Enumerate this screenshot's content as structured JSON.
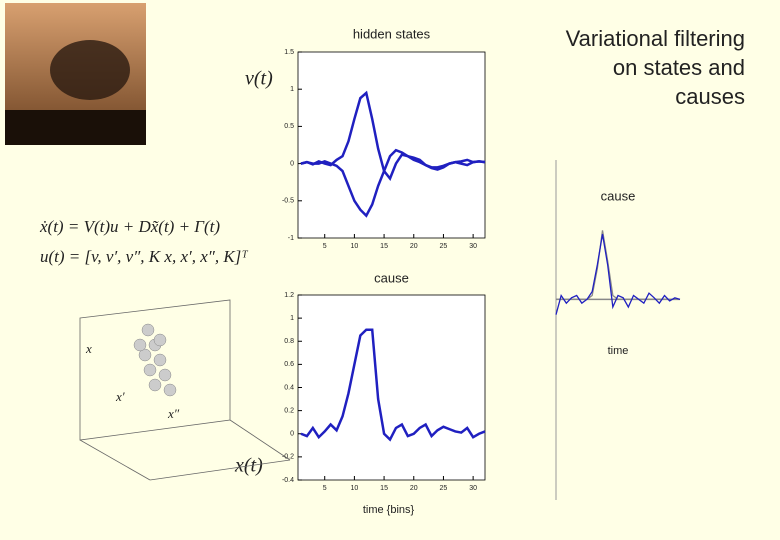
{
  "slide": {
    "title_lines": [
      "Variational filtering",
      "on states and",
      "causes"
    ],
    "labels": [
      "v(t)",
      "x(t)",
      "x",
      "x′",
      "x″"
    ],
    "equations": [
      "ẋ(t) = V(t)u + Dx̃(t) + Γ(t)",
      "u(t) = [v, v′, v″, K x, x′, x″, K]ᵀ"
    ]
  },
  "chart_data": [
    {
      "type": "line",
      "title": "hidden states",
      "x": [
        1,
        2,
        3,
        4,
        5,
        6,
        7,
        8,
        9,
        10,
        11,
        12,
        13,
        14,
        15,
        16,
        17,
        18,
        19,
        20,
        21,
        22,
        23,
        24,
        25,
        26,
        27,
        28,
        29,
        30,
        31,
        32
      ],
      "series": [
        {
          "color": "#2020c0",
          "values": [
            0,
            0.02,
            -0.01,
            0.03,
            0,
            -0.02,
            0.05,
            0.1,
            0.3,
            0.6,
            0.88,
            0.95,
            0.6,
            0.2,
            -0.1,
            -0.2,
            0,
            0.12,
            0.1,
            0.05,
            0.02,
            -0.02,
            -0.05,
            -0.05,
            -0.03,
            0,
            0.02,
            0,
            -0.02,
            0.02,
            0.03,
            0.02
          ]
        },
        {
          "color": "#2020c0",
          "values": [
            0,
            0.02,
            0,
            0,
            0.03,
            0,
            -0.03,
            -0.1,
            -0.3,
            -0.5,
            -0.62,
            -0.7,
            -0.55,
            -0.3,
            -0.1,
            0.1,
            0.18,
            0.15,
            0.1,
            0.08,
            0.05,
            -0.02,
            -0.06,
            -0.08,
            -0.05,
            0,
            0.02,
            0.03,
            0.05,
            0.02,
            0.03,
            0.02
          ]
        }
      ],
      "xlim": [
        0.5,
        32
      ],
      "xticks": [
        5,
        10,
        15,
        20,
        25,
        30
      ],
      "ylim": [
        -1,
        1.5
      ],
      "yticks": [
        -1,
        -0.5,
        0,
        0.5,
        1,
        1.5
      ]
    },
    {
      "type": "line",
      "title": "cause",
      "x_label": "time {bins}",
      "x": [
        1,
        2,
        3,
        4,
        5,
        6,
        7,
        8,
        9,
        10,
        11,
        12,
        13,
        14,
        15,
        16,
        17,
        18,
        19,
        20,
        21,
        22,
        23,
        24,
        25,
        26,
        27,
        28,
        29,
        30,
        31,
        32
      ],
      "series": [
        {
          "color": "#2020c0",
          "values": [
            0,
            -0.02,
            0.05,
            -0.03,
            0.02,
            0.08,
            0.03,
            0.15,
            0.35,
            0.6,
            0.85,
            0.9,
            0.9,
            0.3,
            0,
            -0.05,
            0.05,
            0.08,
            -0.02,
            0,
            0.05,
            0.08,
            -0.02,
            0.03,
            0.06,
            0.04,
            0.02,
            0.01,
            0.05,
            -0.03,
            0,
            0.02
          ]
        }
      ],
      "xlim": [
        0.5,
        32
      ],
      "xticks": [
        5,
        10,
        15,
        20,
        25,
        30
      ],
      "ylim": [
        -0.4,
        1.2
      ],
      "yticks": [
        -0.4,
        -0.2,
        0,
        0.2,
        0.4,
        0.6,
        0.8,
        1,
        1.2
      ]
    },
    {
      "type": "line",
      "title": "cause",
      "x_label": "time",
      "x": [
        1,
        2,
        3,
        4,
        5,
        6,
        7,
        8,
        9,
        10,
        11,
        12,
        13,
        14,
        15,
        16,
        17,
        18,
        19,
        20,
        21,
        22,
        23,
        24,
        25
      ],
      "series": [
        {
          "color": "#888888",
          "values": [
            0,
            0,
            0,
            0,
            0,
            0,
            0,
            0.05,
            0.4,
            0.9,
            0.5,
            0.05,
            0,
            0,
            0,
            0,
            0,
            0,
            0,
            0,
            0,
            0,
            0,
            0,
            0
          ]
        },
        {
          "color": "#2020c0",
          "values": [
            -0.2,
            0.05,
            -0.05,
            0.02,
            0.05,
            -0.05,
            0,
            0.1,
            0.45,
            0.85,
            0.45,
            -0.1,
            0.05,
            0.02,
            -0.1,
            0.05,
            0,
            -0.05,
            0.08,
            0.02,
            -0.05,
            0.05,
            -0.02,
            0.02,
            0
          ]
        }
      ],
      "xlim": [
        1,
        25
      ],
      "ylim": [
        -0.4,
        1.1
      ]
    }
  ]
}
